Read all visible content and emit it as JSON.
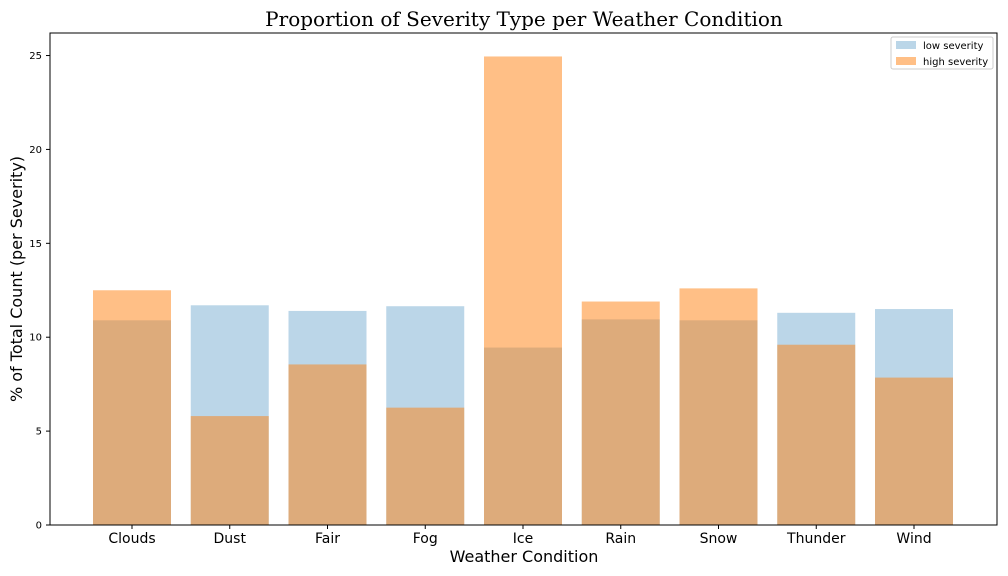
{
  "chart_data": {
    "type": "bar",
    "title": "Proportion of Severity Type per Weather Condition",
    "xlabel": "Weather Condition",
    "ylabel": "% of Total Count (per Severity)",
    "ylim": [
      0,
      26.2
    ],
    "yticks": [
      0,
      5,
      10,
      15,
      20,
      25
    ],
    "categories": [
      "Clouds",
      "Dust",
      "Fair",
      "Fog",
      "Ice",
      "Rain",
      "Snow",
      "Thunder",
      "Wind"
    ],
    "series": [
      {
        "name": "low severity",
        "color": "#1f77b4",
        "opacity": 0.3,
        "values": [
          10.9,
          11.7,
          11.4,
          11.65,
          9.45,
          10.95,
          10.9,
          11.3,
          11.5
        ]
      },
      {
        "name": "high severity",
        "color": "#ff7f0e",
        "opacity": 0.5,
        "values": [
          12.5,
          5.8,
          8.55,
          6.25,
          24.95,
          11.9,
          12.6,
          9.6,
          7.85
        ]
      }
    ],
    "legend_position": "top-right",
    "grid": false
  }
}
